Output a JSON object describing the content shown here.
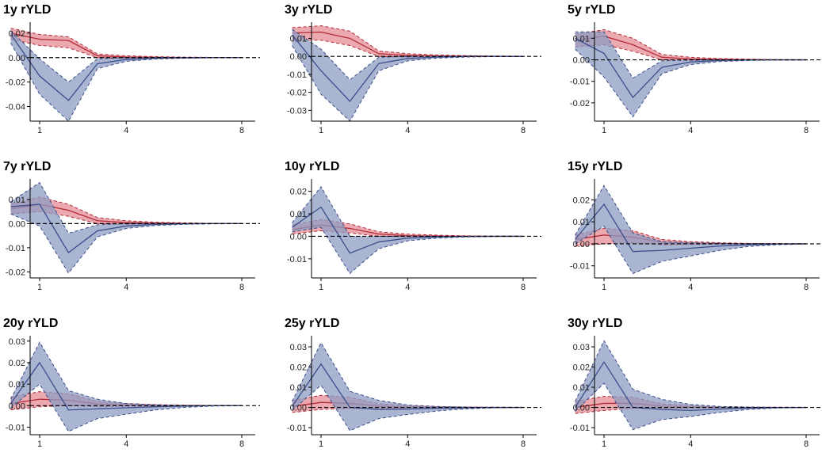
{
  "colors": {
    "positive_shock": "#b22a38",
    "positive_fill": "#e58d95",
    "negative_shock": "#3b4f8a",
    "negative_fill": "#8d9cc3",
    "zero_line": "#000000",
    "axis": "#000000"
  },
  "chart_data": [
    {
      "type": "line",
      "title": "1y rYLD",
      "x": [
        0,
        1,
        2,
        3,
        4,
        5,
        6,
        7,
        8
      ],
      "xticks": [
        1,
        4,
        8
      ],
      "yticks": [
        0.02,
        0.0,
        -0.02,
        -0.04
      ],
      "ytick_labels": [
        "0.02",
        "0.00",
        "-0.02",
        "-0.04"
      ],
      "ylim": [
        -0.052,
        0.029
      ],
      "series": [
        {
          "mid": [
            0.02,
            0.015,
            0.014,
            0.0015,
            0.0005,
            0.0002,
            0.0001,
            0.0,
            0.0
          ],
          "lo": [
            0.015,
            0.01,
            0.008,
            0.0,
            -0.0005,
            -0.0002,
            0.0,
            0.0,
            0.0
          ],
          "hi": [
            0.024,
            0.019,
            0.017,
            0.003,
            0.0015,
            0.0008,
            0.0004,
            0.0002,
            0.0001
          ]
        },
        {
          "mid": [
            0.019,
            -0.015,
            -0.035,
            -0.005,
            -0.0015,
            -0.0005,
            -0.0002,
            0.0,
            0.0
          ],
          "lo": [
            0.012,
            -0.03,
            -0.052,
            -0.009,
            -0.003,
            -0.0012,
            -0.0005,
            -0.0002,
            0.0
          ],
          "hi": [
            0.022,
            -0.001,
            -0.02,
            -0.001,
            0.0,
            0.0,
            0.0,
            0.0,
            0.0
          ]
        }
      ]
    },
    {
      "type": "line",
      "title": "3y rYLD",
      "x": [
        0,
        1,
        2,
        3,
        4,
        5,
        6,
        7,
        8
      ],
      "xticks": [
        1,
        4,
        8
      ],
      "yticks": [
        0.01,
        0.0,
        -0.01,
        -0.02,
        -0.03
      ],
      "ytick_labels": [
        "0.01",
        "0.00",
        "-0.01",
        "-0.02",
        "-0.03"
      ],
      "ylim": [
        -0.036,
        0.019
      ],
      "series": [
        {
          "mid": [
            0.013,
            0.0135,
            0.01,
            0.0015,
            0.0005,
            0.0002,
            0.0001,
            0.0,
            0.0
          ],
          "lo": [
            0.009,
            0.009,
            0.006,
            0.0,
            -0.0005,
            -0.0002,
            0.0,
            0.0,
            0.0
          ],
          "hi": [
            0.016,
            0.017,
            0.014,
            0.003,
            0.0015,
            0.0008,
            0.0004,
            0.0002,
            0.0001
          ]
        },
        {
          "mid": [
            0.012,
            -0.008,
            -0.025,
            -0.004,
            -0.0012,
            -0.0004,
            -0.0001,
            0.0,
            0.0
          ],
          "lo": [
            0.006,
            -0.021,
            -0.036,
            -0.008,
            -0.0025,
            -0.001,
            -0.0004,
            -0.0001,
            0.0
          ],
          "hi": [
            0.015,
            0.004,
            -0.013,
            -0.0005,
            0.0,
            0.0,
            0.0,
            0.0,
            0.0
          ]
        }
      ]
    },
    {
      "type": "line",
      "title": "5y rYLD",
      "x": [
        0,
        1,
        2,
        3,
        4,
        5,
        6,
        7,
        8
      ],
      "xticks": [
        1,
        4,
        8
      ],
      "yticks": [
        0.01,
        0.0,
        -0.01,
        -0.02
      ],
      "ytick_labels": [
        "0.01",
        "0.00",
        "-0.01",
        "-0.02"
      ],
      "ylim": [
        -0.0285,
        0.0175
      ],
      "series": [
        {
          "mid": [
            0.009,
            0.011,
            0.007,
            0.0012,
            0.0004,
            0.0002,
            0.0001,
            0.0,
            0.0
          ],
          "lo": [
            0.006,
            0.007,
            0.004,
            0.0,
            -0.0004,
            -0.0002,
            0.0,
            0.0,
            0.0
          ],
          "hi": [
            0.012,
            0.014,
            0.01,
            0.0025,
            0.0012,
            0.0006,
            0.0003,
            0.0001,
            0.0
          ]
        },
        {
          "mid": [
            0.01,
            0.003,
            -0.0175,
            -0.0035,
            -0.001,
            -0.0003,
            -0.0001,
            0.0,
            0.0
          ],
          "lo": [
            0.005,
            -0.008,
            -0.0265,
            -0.0065,
            -0.0022,
            -0.0008,
            -0.0003,
            -0.0001,
            0.0
          ],
          "hi": [
            0.013,
            0.013,
            -0.0085,
            -0.0005,
            0.0,
            0.0,
            0.0,
            0.0,
            0.0
          ]
        }
      ]
    },
    {
      "type": "line",
      "title": "7y rYLD",
      "x": [
        0,
        1,
        2,
        3,
        4,
        5,
        6,
        7,
        8
      ],
      "xticks": [
        1,
        4,
        8
      ],
      "yticks": [
        0.01,
        0.0,
        -0.01,
        -0.02
      ],
      "ytick_labels": [
        "0.01",
        "0.00",
        "-0.01",
        "-0.02"
      ],
      "ylim": [
        -0.0225,
        0.0185
      ],
      "series": [
        {
          "mid": [
            0.006,
            0.008,
            0.0055,
            0.0012,
            0.0004,
            0.0002,
            0.0001,
            0.0,
            0.0
          ],
          "lo": [
            0.004,
            0.005,
            0.003,
            0.0,
            -0.0004,
            -0.0002,
            0.0,
            0.0,
            0.0
          ],
          "hi": [
            0.008,
            0.011,
            0.008,
            0.0025,
            0.0012,
            0.0006,
            0.0003,
            0.0001,
            0.0
          ]
        },
        {
          "mid": [
            0.007,
            0.008,
            -0.012,
            -0.003,
            -0.001,
            -0.0003,
            -0.0001,
            0.0,
            0.0
          ],
          "lo": [
            0.004,
            -0.001,
            -0.0205,
            -0.0055,
            -0.002,
            -0.0008,
            -0.0003,
            -0.0001,
            0.0
          ],
          "hi": [
            0.009,
            0.017,
            -0.004,
            -0.0005,
            0.0,
            0.0,
            0.0,
            0.0,
            0.0
          ]
        }
      ]
    },
    {
      "type": "line",
      "title": "10y rYLD",
      "x": [
        0,
        1,
        2,
        3,
        4,
        5,
        6,
        7,
        8
      ],
      "xticks": [
        1,
        4,
        8
      ],
      "yticks": [
        0.02,
        0.01,
        0.0,
        -0.01
      ],
      "ytick_labels": [
        "0.02",
        "0.01",
        "0.00",
        "-0.01"
      ],
      "ylim": [
        -0.0185,
        0.0255
      ],
      "series": [
        {
          "mid": [
            0.003,
            0.005,
            0.0035,
            0.001,
            0.0003,
            0.0001,
            0.0,
            0.0,
            0.0
          ],
          "lo": [
            0.001,
            0.0025,
            0.0015,
            0.0,
            -0.0003,
            -0.0001,
            0.0,
            0.0,
            0.0
          ],
          "hi": [
            0.005,
            0.0075,
            0.0055,
            0.002,
            0.001,
            0.0005,
            0.0002,
            0.0001,
            0.0
          ]
        },
        {
          "mid": [
            0.004,
            0.013,
            -0.0075,
            -0.0025,
            -0.0008,
            -0.0003,
            -0.0001,
            0.0,
            0.0
          ],
          "lo": [
            0.002,
            0.004,
            -0.0165,
            -0.0055,
            -0.002,
            -0.0008,
            -0.0003,
            -0.0001,
            0.0
          ],
          "hi": [
            0.006,
            0.022,
            0.0,
            0.0,
            0.0,
            0.0,
            0.0,
            0.0,
            0.0
          ]
        }
      ]
    },
    {
      "type": "line",
      "title": "15y rYLD",
      "x": [
        0,
        1,
        2,
        3,
        4,
        5,
        6,
        7,
        8
      ],
      "xticks": [
        1,
        4,
        8
      ],
      "yticks": [
        0.02,
        0.01,
        0.0,
        -0.01
      ],
      "ytick_labels": [
        "0.02",
        "0.01",
        "0.00",
        "-0.01"
      ],
      "ylim": [
        -0.0155,
        0.0295
      ],
      "series": [
        {
          "mid": [
            0.002,
            0.004,
            0.003,
            0.0008,
            0.0003,
            0.0001,
            0.0,
            0.0,
            0.0
          ],
          "lo": [
            -0.001,
            0.0,
            0.0005,
            -0.0005,
            -0.0003,
            -0.0001,
            0.0,
            0.0,
            0.0
          ],
          "hi": [
            0.004,
            0.007,
            0.006,
            0.002,
            0.001,
            0.0005,
            0.0002,
            0.0001,
            0.0
          ]
        },
        {
          "mid": [
            0.002,
            0.018,
            -0.0035,
            -0.003,
            -0.002,
            -0.001,
            -0.0004,
            -0.0001,
            0.0
          ],
          "lo": [
            0.0,
            0.008,
            -0.0135,
            -0.008,
            -0.0055,
            -0.003,
            -0.0012,
            -0.0004,
            -0.0001
          ],
          "hi": [
            0.004,
            0.0265,
            0.005,
            0.001,
            0.0005,
            0.0002,
            0.0001,
            0.0,
            0.0
          ]
        }
      ]
    },
    {
      "type": "line",
      "title": "20y rYLD",
      "x": [
        0,
        1,
        2,
        3,
        4,
        5,
        6,
        7,
        8
      ],
      "xticks": [
        1,
        4,
        8
      ],
      "yticks": [
        0.03,
        0.02,
        0.01,
        0.0,
        -0.01
      ],
      "ytick_labels": [
        "0.03",
        "0.02",
        "0.01",
        "0.00",
        "-0.01"
      ],
      "ylim": [
        -0.0135,
        0.0325
      ],
      "series": [
        {
          "mid": [
            0.001,
            0.003,
            0.0025,
            0.0008,
            0.0003,
            0.0001,
            0.0,
            0.0,
            0.0
          ],
          "lo": [
            -0.002,
            -0.0005,
            0.0,
            -0.0005,
            -0.0003,
            -0.0001,
            0.0,
            0.0,
            0.0
          ],
          "hi": [
            0.004,
            0.0065,
            0.0055,
            0.002,
            0.001,
            0.0005,
            0.0002,
            0.0001,
            0.0
          ]
        },
        {
          "mid": [
            0.001,
            0.02,
            -0.002,
            -0.0015,
            -0.001,
            -0.0005,
            -0.0002,
            0.0,
            0.0
          ],
          "lo": [
            -0.001,
            0.01,
            -0.012,
            -0.006,
            -0.004,
            -0.002,
            -0.0008,
            -0.0002,
            0.0
          ],
          "hi": [
            0.003,
            0.0295,
            0.007,
            0.003,
            0.001,
            0.0004,
            0.0001,
            0.0,
            0.0
          ]
        }
      ]
    },
    {
      "type": "line",
      "title": "25y rYLD",
      "x": [
        0,
        1,
        2,
        3,
        4,
        5,
        6,
        7,
        8
      ],
      "xticks": [
        1,
        4,
        8
      ],
      "yticks": [
        0.03,
        0.02,
        0.01,
        0.0,
        -0.01
      ],
      "ytick_labels": [
        "0.03",
        "0.02",
        "0.01",
        "0.00",
        "-0.01"
      ],
      "ylim": [
        -0.0135,
        0.0355
      ],
      "series": [
        {
          "mid": [
            0.0005,
            0.0025,
            0.002,
            0.0006,
            0.0002,
            0.0001,
            0.0,
            0.0,
            0.0
          ],
          "lo": [
            -0.0025,
            -0.001,
            -0.0005,
            -0.0006,
            -0.0003,
            -0.0001,
            0.0,
            0.0,
            0.0
          ],
          "hi": [
            0.0035,
            0.006,
            0.005,
            0.0018,
            0.0009,
            0.0004,
            0.0002,
            0.0001,
            0.0
          ]
        },
        {
          "mid": [
            0.0005,
            0.0215,
            0.0,
            -0.001,
            -0.0008,
            -0.0004,
            -0.0002,
            0.0,
            0.0
          ],
          "lo": [
            -0.0015,
            0.011,
            -0.0115,
            -0.0055,
            -0.0035,
            -0.0018,
            -0.0007,
            -0.0002,
            0.0
          ],
          "hi": [
            0.003,
            0.032,
            0.008,
            0.0035,
            0.0012,
            0.0005,
            0.0002,
            0.0,
            0.0
          ]
        }
      ]
    },
    {
      "type": "line",
      "title": "30y rYLD",
      "x": [
        0,
        1,
        2,
        3,
        4,
        5,
        6,
        7,
        8
      ],
      "xticks": [
        1,
        4,
        8
      ],
      "yticks": [
        0.03,
        0.02,
        0.01,
        0.0,
        -0.01
      ],
      "ytick_labels": [
        "0.03",
        "0.02",
        "0.01",
        "0.00",
        "-0.01"
      ],
      "ylim": [
        -0.0135,
        0.0355
      ],
      "series": [
        {
          "mid": [
            0.0,
            0.002,
            0.002,
            0.0006,
            0.0002,
            0.0001,
            0.0,
            0.0,
            0.0
          ],
          "lo": [
            -0.003,
            -0.0015,
            -0.0005,
            -0.0006,
            -0.0003,
            -0.0001,
            0.0,
            0.0,
            0.0
          ],
          "hi": [
            0.003,
            0.0055,
            0.005,
            0.0018,
            0.0009,
            0.0004,
            0.0002,
            0.0001,
            0.0
          ]
        },
        {
          "mid": [
            0.0,
            0.0225,
            0.0,
            -0.001,
            -0.0015,
            -0.0008,
            -0.0003,
            -0.0001,
            0.0
          ],
          "lo": [
            -0.002,
            0.012,
            -0.011,
            -0.006,
            -0.0045,
            -0.0025,
            -0.001,
            -0.0003,
            0.0
          ],
          "hi": [
            0.003,
            0.033,
            0.009,
            0.004,
            0.0015,
            0.0005,
            0.0002,
            0.0,
            0.0
          ]
        }
      ]
    }
  ]
}
